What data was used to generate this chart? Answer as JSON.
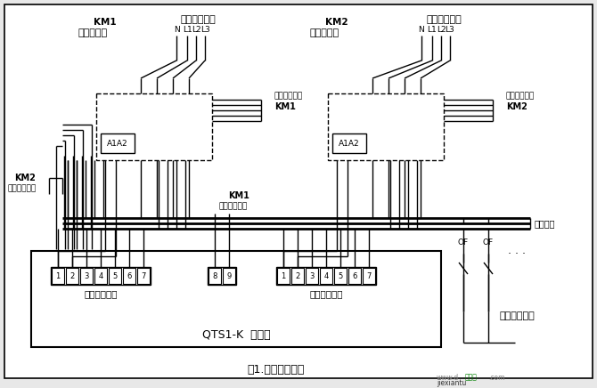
{
  "title": "图1.控制器接线图",
  "bg_color": "#e8e8e8",
  "diagram_bg": "#ffffff",
  "text_color": "#000000",
  "line_color": "#000000",
  "km1_coil_label": "KM1",
  "km1_coil_sub": "接触器线圈",
  "km2_coil_label": "KM2",
  "km2_coil_sub": "接触器线圈",
  "backup_input": "备用电源输入",
  "normal_input": "常用电源输入",
  "backup_plug": "备用电源插口",
  "normal_plug": "常用电源插口",
  "controller": "QTS1-K  控制器",
  "load": "消防用电负荷",
  "bus_label": "配电母线",
  "km2_nc": "KM2",
  "km2_nc_sub": "常闭辅助触点",
  "km1_nc": "KM1",
  "km1_nc_sub": "常闭辅助触点",
  "no_contact": "常开辅助触点",
  "km1_label": "KM1",
  "km2_label": "KM2",
  "power_labels": [
    "N",
    "L1",
    "L2",
    "L3"
  ],
  "of_label": "OF",
  "dots": "· · ·",
  "a1a2": "A1A2"
}
